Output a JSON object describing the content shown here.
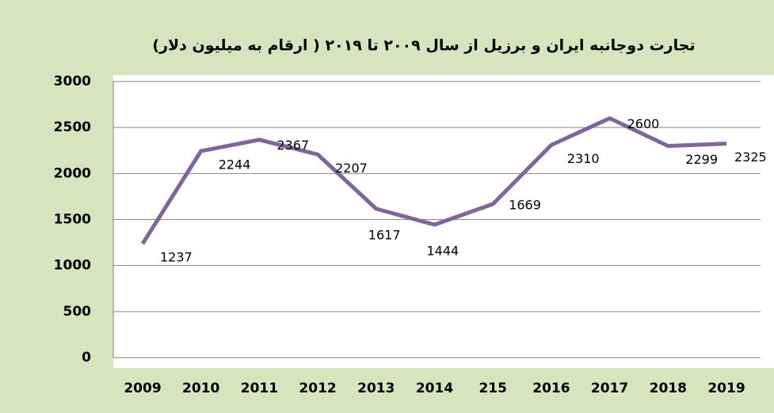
{
  "chart_data": {
    "type": "line",
    "title": "تجارت دوجانبه ایران و برزیل  از سال  ۲۰۰۹ تا ۲۰۱۹ ( ارقام به میلیون دلار)",
    "categories": [
      "2009",
      "2010",
      "2011",
      "2012",
      "2013",
      "2014",
      "215",
      "2016",
      "2017",
      "2018",
      "2019"
    ],
    "series": [
      {
        "name": "trade",
        "color": "#8064a2",
        "values": [
          1237,
          2244,
          2367,
          2207,
          1617,
          1444,
          1669,
          2310,
          2600,
          2299,
          2325
        ]
      }
    ],
    "ylim": [
      0,
      3000
    ],
    "yticks": [
      0,
      500,
      1000,
      1500,
      2000,
      2500,
      3000
    ],
    "grid": true
  }
}
